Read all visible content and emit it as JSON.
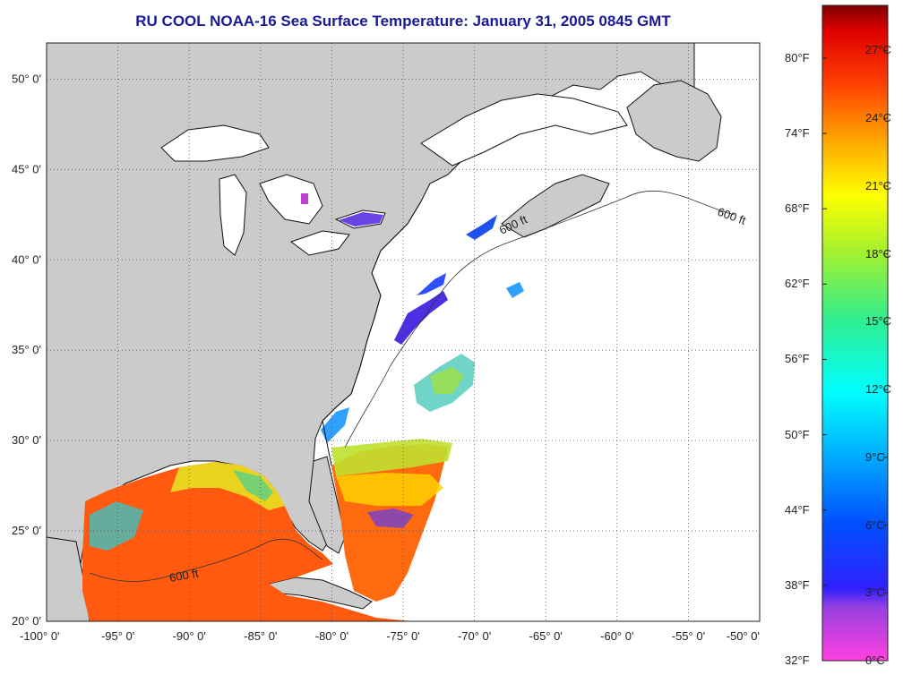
{
  "title": "RU COOL  NOAA-16  Sea Surface Temperature:  January 31, 2005 0845 GMT",
  "colors": {
    "land": "#cbcbcb",
    "no_data": "#ffffff",
    "coast": "#111111",
    "title": "#1a1a99"
  },
  "map": {
    "lon_range": [
      -100,
      -50
    ],
    "lat_range": [
      20,
      52
    ],
    "x_ticks": [
      "-100° 0'",
      "-95° 0'",
      "-90° 0'",
      "-85° 0'",
      "-80° 0'",
      "-75° 0'",
      "-70° 0'",
      "-65° 0'",
      "-60° 0'",
      "-55° 0'",
      "-50° 0'"
    ],
    "y_ticks": [
      "50° 0'",
      "45° 0'",
      "40° 0'",
      "35° 0'",
      "30° 0'",
      "25° 0'",
      "20° 0'"
    ],
    "y_tick_values": [
      50,
      45,
      40,
      35,
      30,
      25,
      20
    ],
    "x_tick_values": [
      -100,
      -95,
      -90,
      -85,
      -80,
      -75,
      -70,
      -65,
      -60,
      -55,
      -50
    ],
    "isobath_label": "600 ft"
  },
  "colorbar": {
    "celsius_labels": [
      "27°C",
      "24°C",
      "21°C",
      "18°C",
      "15°C",
      "12°C",
      "9°C",
      "6°C",
      "3°C",
      "0°C"
    ],
    "celsius_values": [
      27,
      24,
      21,
      18,
      15,
      12,
      9,
      6,
      3,
      0
    ],
    "fahrenheit_labels": [
      "80°F",
      "74°F",
      "68°F",
      "62°F",
      "56°F",
      "50°F",
      "44°F",
      "38°F",
      "32°F"
    ],
    "fahrenheit_values": [
      80,
      74,
      68,
      62,
      56,
      50,
      44,
      38,
      32
    ],
    "range_c": [
      0,
      29
    ]
  }
}
